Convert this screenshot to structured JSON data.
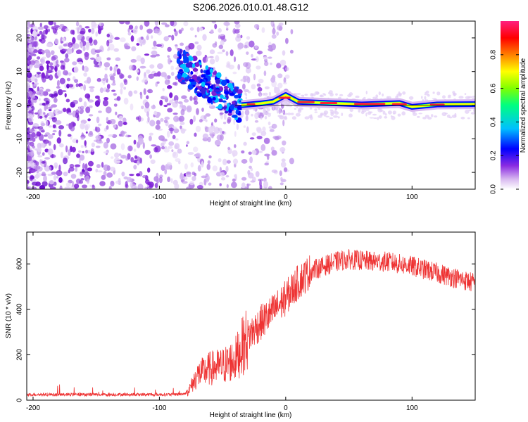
{
  "title": "S206.2026.010.01.48.G12",
  "chart_data": [
    {
      "type": "heatmap",
      "xlabel": "Height of straight line (km)",
      "ylabel": "Frequency (Hz)",
      "xlim": [
        -205,
        150
      ],
      "ylim": [
        -25,
        25
      ],
      "x_ticks": [
        -200,
        -100,
        0,
        100
      ],
      "y_ticks": [
        -20,
        -10,
        0,
        10,
        20
      ],
      "colorbar": {
        "label": "Normalized spectral amplitude",
        "range": [
          0.0,
          1.0
        ],
        "ticks": [
          0.0,
          0.2,
          0.4,
          0.6,
          0.8
        ],
        "colormap": [
          "#ffffff",
          "#d8b8f0",
          "#8a2be2",
          "#0000ff",
          "#00c0ff",
          "#00ff80",
          "#80ff00",
          "#ffff00",
          "#ff8000",
          "#ff0000",
          "#ff2080"
        ]
      },
      "ridge": [
        {
          "x": -35,
          "y": 0.0
        },
        {
          "x": -20,
          "y": 0.5
        },
        {
          "x": -10,
          "y": 1.0
        },
        {
          "x": 0,
          "y": 3.0
        },
        {
          "x": 10,
          "y": 1.0
        },
        {
          "x": 30,
          "y": 0.7
        },
        {
          "x": 60,
          "y": 0.2
        },
        {
          "x": 90,
          "y": 0.6
        },
        {
          "x": 100,
          "y": -0.5
        },
        {
          "x": 120,
          "y": 0.2
        },
        {
          "x": 150,
          "y": 0.3
        }
      ]
    },
    {
      "type": "line",
      "xlabel": "Height of straight line (km)",
      "ylabel": "SNR (10 * v/v)",
      "xlim": [
        -205,
        150
      ],
      "ylim": [
        0,
        740
      ],
      "x_ticks": [
        -200,
        -100,
        0,
        100
      ],
      "y_ticks": [
        0,
        200,
        400,
        600
      ],
      "series": [
        {
          "name": "SNR",
          "color": "#ee3333",
          "x": [
            -205,
            -190,
            -175,
            -160,
            -145,
            -130,
            -115,
            -100,
            -90,
            -80,
            -76,
            -70,
            -60,
            -50,
            -40,
            -35,
            -30,
            -20,
            -10,
            0,
            10,
            20,
            30,
            40,
            50,
            60,
            70,
            80,
            90,
            100,
            110,
            120,
            130,
            140,
            150
          ],
          "y": [
            25,
            25,
            25,
            25,
            25,
            25,
            25,
            25,
            25,
            28,
            50,
            110,
            140,
            150,
            180,
            230,
            280,
            340,
            390,
            450,
            520,
            570,
            590,
            610,
            620,
            615,
            610,
            610,
            600,
            590,
            575,
            560,
            545,
            530,
            515
          ]
        }
      ]
    }
  ]
}
